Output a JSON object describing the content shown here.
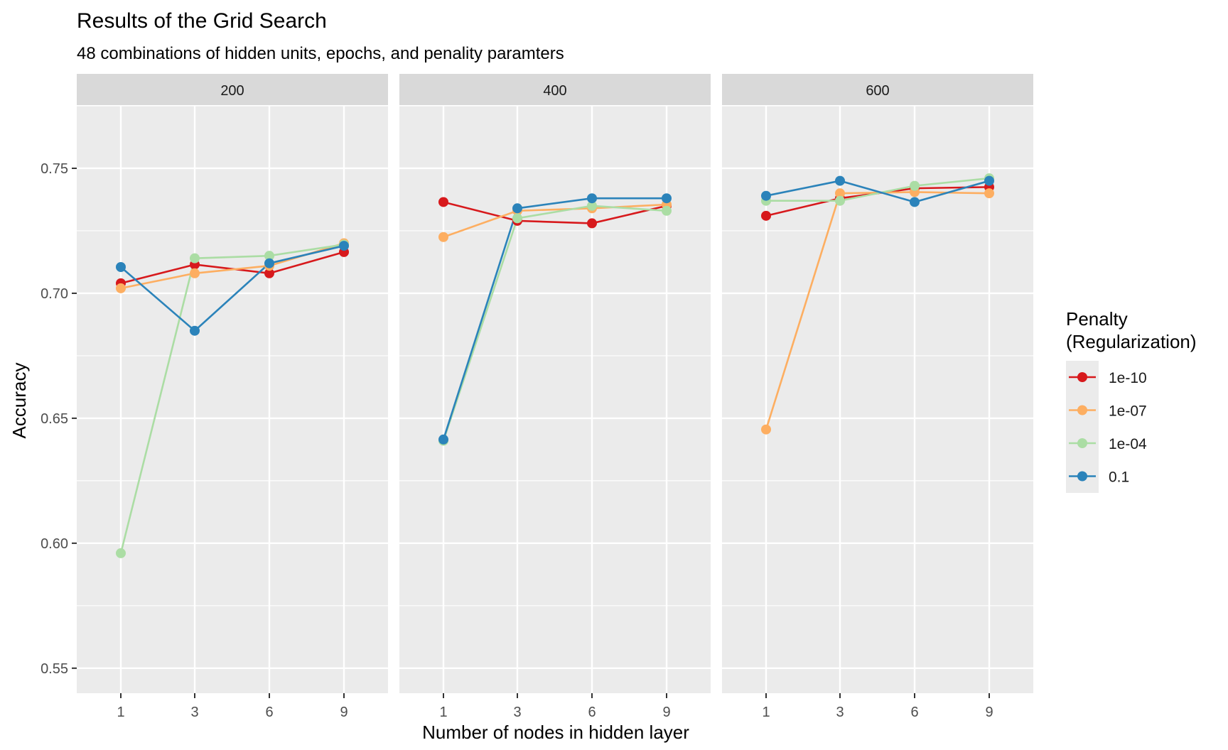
{
  "chart_data": {
    "type": "line",
    "title": "Results of the Grid Search",
    "subtitle": "48 combinations of hidden units, epochs, and penality paramters",
    "xlabel": "Number of nodes in hidden layer",
    "ylabel": "Accuracy",
    "x_categories": [
      "1",
      "3",
      "6",
      "9"
    ],
    "y_ticks": [
      "0.55",
      "0.60",
      "0.65",
      "0.70",
      "0.75"
    ],
    "ylim": [
      0.54,
      0.775
    ],
    "grid": true,
    "legend": {
      "title_line1": "Penalty",
      "title_line2": "(Regularization)",
      "placement": "right"
    },
    "series_styles": [
      {
        "name": "1e-10",
        "color": "#D7191C"
      },
      {
        "name": "1e-07",
        "color": "#FDAE61"
      },
      {
        "name": "1e-04",
        "color": "#ABDDA4"
      },
      {
        "name": "0.1",
        "color": "#2B83BA"
      }
    ],
    "panels": [
      {
        "label": "200",
        "series": [
          {
            "name": "1e-10",
            "values": [
              0.704,
              0.7115,
              0.708,
              0.7165
            ]
          },
          {
            "name": "1e-07",
            "values": [
              0.702,
              0.708,
              0.711,
              0.72
            ]
          },
          {
            "name": "1e-04",
            "values": [
              0.596,
              0.714,
              0.715,
              0.7195
            ]
          },
          {
            "name": "0.1",
            "values": [
              0.7105,
              0.685,
              0.712,
              0.719
            ]
          }
        ]
      },
      {
        "label": "400",
        "series": [
          {
            "name": "1e-10",
            "values": [
              0.7365,
              0.729,
              0.728,
              0.735
            ]
          },
          {
            "name": "1e-07",
            "values": [
              0.7225,
              0.733,
              0.734,
              0.7355
            ]
          },
          {
            "name": "1e-04",
            "values": [
              0.641,
              0.73,
              0.735,
              0.733
            ]
          },
          {
            "name": "0.1",
            "values": [
              0.6415,
              0.734,
              0.738,
              0.738
            ]
          }
        ]
      },
      {
        "label": "600",
        "series": [
          {
            "name": "1e-10",
            "values": [
              0.731,
              0.738,
              0.742,
              0.7425
            ]
          },
          {
            "name": "1e-07",
            "values": [
              0.6455,
              0.74,
              0.7405,
              0.74
            ]
          },
          {
            "name": "1e-04",
            "values": [
              0.737,
              0.737,
              0.743,
              0.746
            ]
          },
          {
            "name": "0.1",
            "values": [
              0.739,
              0.745,
              0.7365,
              0.745
            ]
          }
        ]
      }
    ]
  }
}
